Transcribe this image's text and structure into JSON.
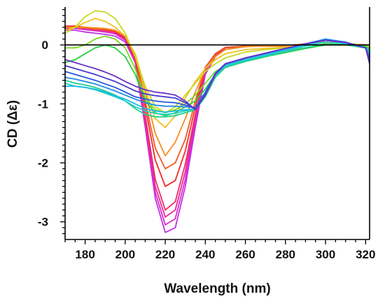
{
  "chart_data": {
    "type": "line",
    "title": "",
    "xlabel": "Wavelength (nm)",
    "ylabel": "CD (Δε)",
    "xlim": [
      170,
      322
    ],
    "ylim": [
      -3.3,
      0.62
    ],
    "xticks": [
      180,
      200,
      220,
      240,
      260,
      280,
      300,
      320
    ],
    "yticks": [
      0,
      -1,
      -2,
      -3
    ],
    "zero_line": true,
    "grid": false,
    "legend": "none",
    "x": [
      170,
      175,
      180,
      185,
      190,
      195,
      200,
      205,
      210,
      215,
      220,
      225,
      230,
      235,
      240,
      245,
      250,
      260,
      270,
      280,
      290,
      300,
      310,
      320,
      322
    ],
    "series": [
      {
        "color": "#c030e8",
        "values": [
          0.25,
          0.25,
          0.22,
          0.2,
          0.18,
          0.15,
          0.05,
          -0.3,
          -1.4,
          -2.6,
          -3.18,
          -3.1,
          -2.4,
          -1.4,
          -0.5,
          -0.2,
          -0.05,
          -0.02,
          -0.02,
          -0.02,
          0.02,
          0.05,
          0.02,
          0.0,
          -0.2
        ]
      },
      {
        "color": "#d82cc8",
        "values": [
          0.28,
          0.28,
          0.26,
          0.24,
          0.22,
          0.19,
          0.08,
          -0.28,
          -1.35,
          -2.5,
          -3.05,
          -2.95,
          -2.28,
          -1.3,
          -0.45,
          -0.18,
          -0.05,
          -0.02,
          -0.02,
          -0.02,
          0.02,
          0.05,
          0.02,
          0.0,
          -0.18
        ]
      },
      {
        "color": "#e82a9a",
        "values": [
          0.3,
          0.3,
          0.28,
          0.26,
          0.24,
          0.21,
          0.1,
          -0.26,
          -1.28,
          -2.4,
          -2.92,
          -2.8,
          -2.15,
          -1.25,
          -0.42,
          -0.17,
          -0.05,
          -0.02,
          -0.02,
          -0.02,
          0.02,
          0.05,
          0.02,
          0.0,
          -0.17
        ]
      },
      {
        "color": "#f02a6a",
        "values": [
          0.3,
          0.3,
          0.29,
          0.27,
          0.25,
          0.22,
          0.12,
          -0.24,
          -1.2,
          -2.28,
          -2.8,
          -2.66,
          -2.02,
          -1.18,
          -0.4,
          -0.16,
          -0.05,
          -0.02,
          -0.02,
          -0.02,
          0.02,
          0.05,
          0.02,
          0.0,
          -0.15
        ]
      },
      {
        "color": "#f42a2a",
        "values": [
          0.32,
          0.32,
          0.3,
          0.28,
          0.26,
          0.23,
          0.14,
          -0.22,
          -1.05,
          -1.95,
          -2.4,
          -2.3,
          -1.8,
          -1.05,
          -0.38,
          -0.15,
          -0.04,
          -0.02,
          -0.02,
          -0.02,
          0.02,
          0.05,
          0.02,
          0.0,
          -0.12
        ]
      },
      {
        "color": "#f05820",
        "values": [
          0.3,
          0.3,
          0.29,
          0.27,
          0.26,
          0.24,
          0.15,
          -0.2,
          -0.95,
          -1.75,
          -2.1,
          -2.0,
          -1.6,
          -0.95,
          -0.38,
          -0.16,
          -0.05,
          -0.02,
          -0.02,
          -0.02,
          0.02,
          0.05,
          0.02,
          0.0,
          -0.1
        ]
      },
      {
        "color": "#f49020",
        "values": [
          0.3,
          0.3,
          0.3,
          0.29,
          0.28,
          0.25,
          0.15,
          -0.18,
          -0.8,
          -1.5,
          -1.88,
          -1.65,
          -1.25,
          -0.8,
          -0.4,
          -0.2,
          -0.08,
          -0.03,
          -0.02,
          -0.02,
          0.02,
          0.05,
          0.02,
          0.0,
          -0.08
        ]
      },
      {
        "color": "#f0c020",
        "values": [
          0.25,
          0.3,
          0.38,
          0.45,
          0.4,
          0.3,
          0.15,
          -0.15,
          -0.75,
          -1.25,
          -1.4,
          -1.2,
          -0.9,
          -0.62,
          -0.4,
          -0.25,
          -0.15,
          -0.08,
          -0.06,
          -0.04,
          0.0,
          0.04,
          0.02,
          0.0,
          -0.05
        ]
      },
      {
        "color": "#c8d820",
        "values": [
          0.2,
          0.3,
          0.48,
          0.58,
          0.56,
          0.45,
          0.2,
          -0.2,
          -0.7,
          -1.05,
          -1.15,
          -1.05,
          -0.85,
          -0.65,
          -0.45,
          -0.32,
          -0.22,
          -0.12,
          -0.08,
          -0.05,
          0.0,
          0.05,
          0.02,
          0.0,
          -0.03
        ]
      },
      {
        "color": "#78d820",
        "values": [
          -0.05,
          -0.05,
          0.0,
          0.1,
          0.15,
          0.1,
          -0.05,
          -0.4,
          -0.9,
          -1.1,
          -1.15,
          -1.1,
          -1.0,
          -0.85,
          -0.65,
          -0.45,
          -0.35,
          -0.25,
          -0.18,
          -0.1,
          -0.05,
          0.0,
          0.0,
          -0.02,
          -0.05
        ]
      },
      {
        "color": "#28d040",
        "values": [
          -0.3,
          -0.25,
          -0.15,
          -0.05,
          0.0,
          -0.05,
          -0.2,
          -0.5,
          -0.95,
          -1.15,
          -1.2,
          -1.15,
          -1.05,
          -0.95,
          -0.75,
          -0.5,
          -0.38,
          -0.28,
          -0.2,
          -0.13,
          -0.06,
          0.0,
          0.0,
          -0.02,
          -0.08
        ]
      },
      {
        "color": "#20d088",
        "values": [
          -0.6,
          -0.65,
          -0.68,
          -0.72,
          -0.78,
          -0.85,
          -0.95,
          -1.08,
          -1.18,
          -1.22,
          -1.22,
          -1.2,
          -1.15,
          -1.1,
          -0.88,
          -0.55,
          -0.38,
          -0.28,
          -0.2,
          -0.12,
          -0.05,
          0.02,
          0.0,
          -0.05,
          -0.1
        ]
      },
      {
        "color": "#20d0c8",
        "values": [
          -0.65,
          -0.7,
          -0.72,
          -0.76,
          -0.82,
          -0.88,
          -0.95,
          -1.05,
          -1.12,
          -1.16,
          -1.18,
          -1.16,
          -1.12,
          -1.08,
          -0.85,
          -0.52,
          -0.36,
          -0.26,
          -0.18,
          -0.1,
          -0.02,
          0.05,
          0.02,
          -0.05,
          -0.12
        ]
      },
      {
        "color": "#20b8e8",
        "values": [
          -0.7,
          -0.7,
          -0.72,
          -0.75,
          -0.8,
          -0.86,
          -0.92,
          -1.0,
          -1.08,
          -1.12,
          -1.14,
          -1.12,
          -1.1,
          -1.08,
          -0.82,
          -0.5,
          -0.34,
          -0.24,
          -0.16,
          -0.08,
          0.0,
          0.08,
          0.04,
          -0.05,
          -0.15
        ]
      },
      {
        "color": "#2088e8",
        "values": [
          -0.55,
          -0.58,
          -0.62,
          -0.66,
          -0.72,
          -0.78,
          -0.85,
          -0.92,
          -0.98,
          -1.02,
          -1.04,
          -1.04,
          -1.05,
          -1.06,
          -0.8,
          -0.48,
          -0.32,
          -0.22,
          -0.14,
          -0.06,
          0.02,
          0.1,
          0.05,
          -0.05,
          -0.2
        ]
      },
      {
        "color": "#2858e0",
        "values": [
          -0.45,
          -0.5,
          -0.55,
          -0.6,
          -0.66,
          -0.72,
          -0.8,
          -0.88,
          -0.92,
          -0.95,
          -0.97,
          -0.98,
          -1.02,
          -1.08,
          -0.82,
          -0.48,
          -0.32,
          -0.22,
          -0.14,
          -0.06,
          0.02,
          0.08,
          0.04,
          -0.05,
          -0.25
        ]
      },
      {
        "color": "#4838d0",
        "values": [
          -0.35,
          -0.4,
          -0.45,
          -0.5,
          -0.56,
          -0.62,
          -0.7,
          -0.78,
          -0.83,
          -0.86,
          -0.88,
          -0.9,
          -0.98,
          -1.08,
          -0.84,
          -0.5,
          -0.32,
          -0.22,
          -0.14,
          -0.06,
          0.02,
          0.08,
          0.04,
          -0.05,
          -0.28
        ]
      },
      {
        "color": "#6830c8",
        "values": [
          -0.25,
          -0.3,
          -0.35,
          -0.4,
          -0.46,
          -0.53,
          -0.62,
          -0.7,
          -0.76,
          -0.8,
          -0.82,
          -0.85,
          -0.95,
          -1.1,
          -0.85,
          -0.5,
          -0.32,
          -0.22,
          -0.14,
          -0.06,
          0.02,
          0.08,
          0.04,
          -0.05,
          -0.32
        ]
      }
    ]
  }
}
